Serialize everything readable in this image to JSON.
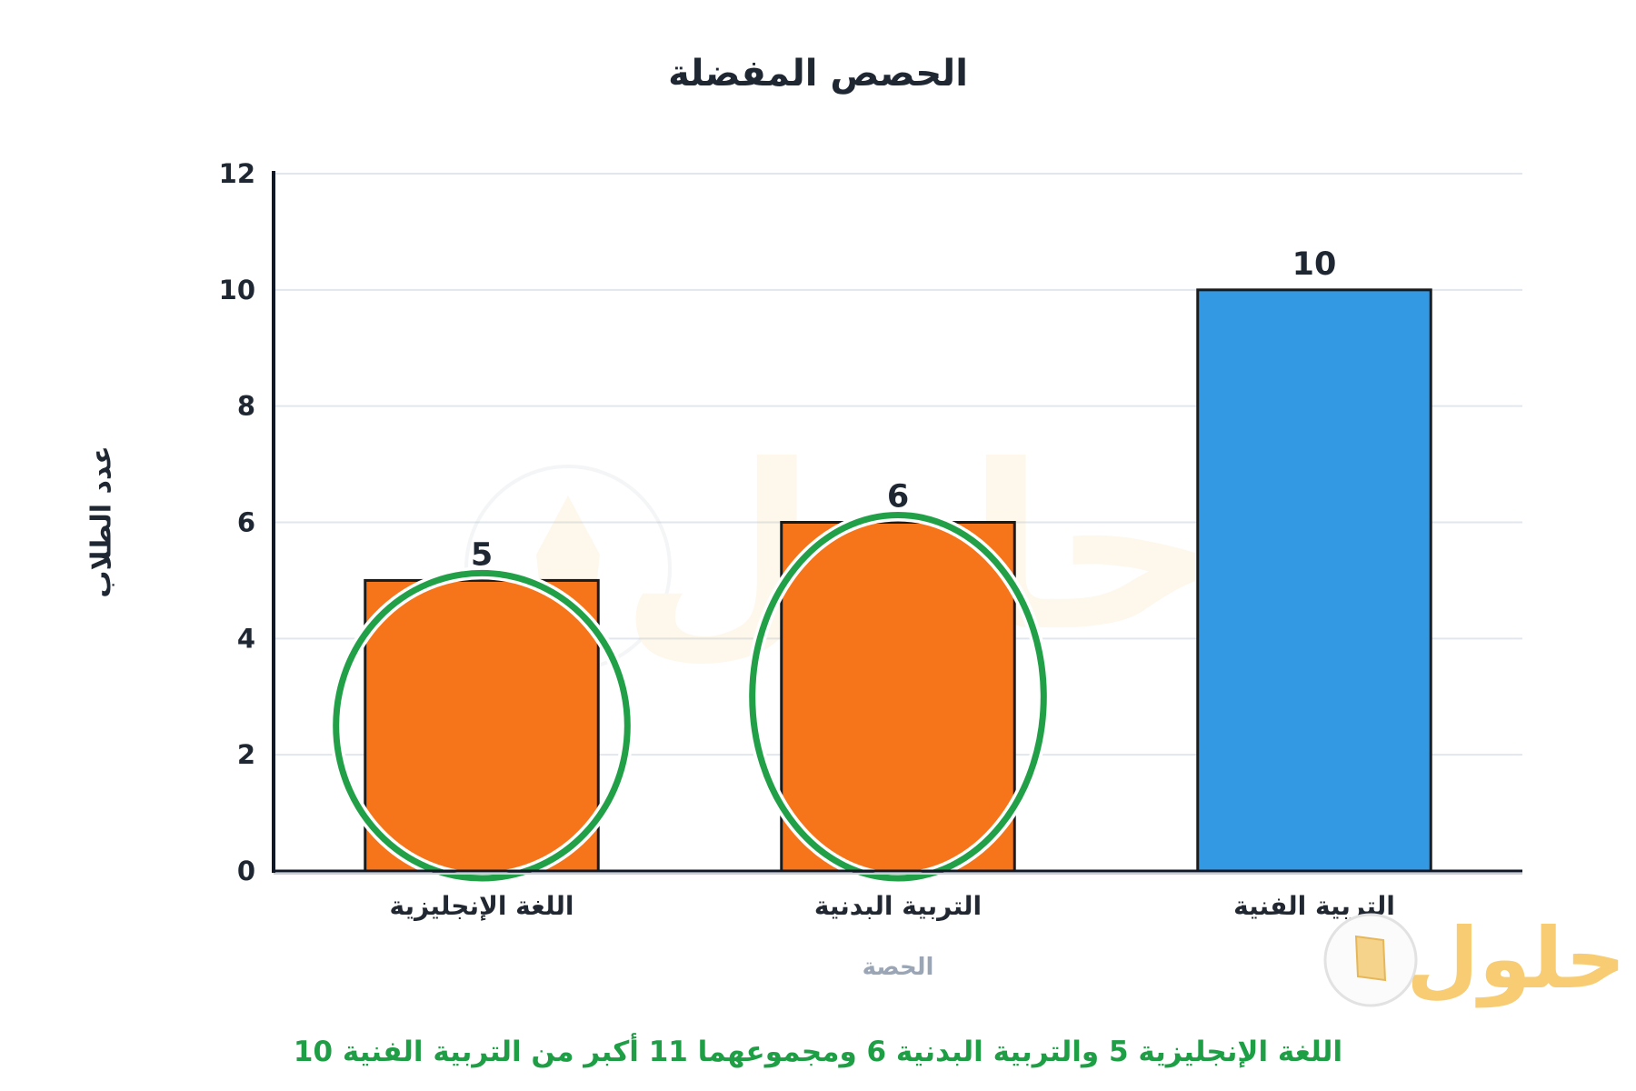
{
  "chart_data": {
    "type": "bar",
    "title": "الحصص المفضلة",
    "xlabel": "الحصة",
    "ylabel": "عدد الطلاب",
    "categories": [
      "اللغة الإنجليزية",
      "التربية البدنية",
      "التربية الفنية"
    ],
    "values": [
      5,
      6,
      10
    ],
    "ylim": [
      0,
      12
    ],
    "yticks": [
      0,
      2,
      4,
      6,
      8,
      10,
      12
    ],
    "grid": true,
    "bar_colors": [
      "#F7751A",
      "#F7751A",
      "#3399E3"
    ],
    "highlighted_indices": [
      0,
      1
    ]
  },
  "annotation": {
    "text": "اللغة الإنجليزية 5 والتربية البدنية 6 ومجموعهما 11 أكبر من التربية الفنية 10"
  },
  "watermark": {
    "text": "حلول"
  },
  "colors": {
    "title": "#1F2733",
    "axis": "#111827",
    "grid": "#E2E7EE",
    "bar_outline": "#1B1B1B",
    "xlabel": "#9AA5B5",
    "highlight": "#22A048",
    "annotation": "#1E9E45",
    "watermark": "#F3B23A"
  }
}
